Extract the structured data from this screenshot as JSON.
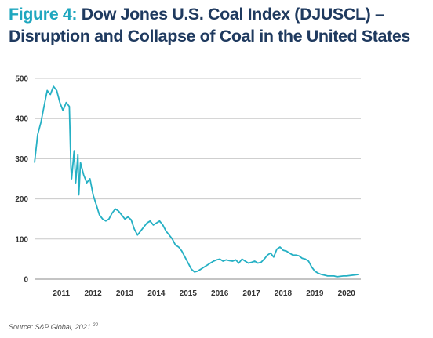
{
  "figure": {
    "label": "Figure 4:",
    "title": "Dow Jones U.S. Coal Index (DJUSCL) – Disruption and Collapse of Coal in the United States",
    "source": "Source: S&P Global, 2021.",
    "source_note": "20"
  },
  "chart_data": {
    "type": "line",
    "title": "Dow Jones U.S. Coal Index (DJUSCL) – Disruption and Collapse of Coal in the United States",
    "xlabel": "",
    "ylabel": "",
    "xlim": [
      2010.45,
      2020.75
    ],
    "ylim": [
      0,
      500
    ],
    "grid": "horizontal",
    "x_ticks": [
      {
        "value": 2011,
        "label": "2011"
      },
      {
        "value": 2012,
        "label": "2012"
      },
      {
        "value": 2013,
        "label": "2013"
      },
      {
        "value": 2014,
        "label": "2014"
      },
      {
        "value": 2015,
        "label": "2015"
      },
      {
        "value": 2016,
        "label": "2016"
      },
      {
        "value": 2017,
        "label": "2017"
      },
      {
        "value": 2018,
        "label": "2018"
      },
      {
        "value": 2019,
        "label": "2019"
      },
      {
        "value": 2020,
        "label": "2020"
      }
    ],
    "y_ticks": [
      0,
      100,
      200,
      300,
      400,
      500
    ],
    "color": "#25b0c4",
    "series": [
      {
        "x": [
          2010.45,
          2010.55,
          2010.65,
          2010.75,
          2010.85,
          2010.95,
          2011.05,
          2011.15,
          2011.25,
          2011.35,
          2011.45,
          2011.55,
          2011.6,
          2011.62,
          2011.7,
          2011.75,
          2011.82,
          2011.85,
          2011.9,
          2012.0,
          2012.1,
          2012.2,
          2012.3,
          2012.4,
          2012.5,
          2012.6,
          2012.7,
          2012.8,
          2012.9,
          2013.0,
          2013.1,
          2013.2,
          2013.3,
          2013.4,
          2013.5,
          2013.6,
          2013.7,
          2013.8,
          2013.9,
          2014.0,
          2014.1,
          2014.2,
          2014.3,
          2014.4,
          2014.5,
          2014.6,
          2014.7,
          2014.8,
          2014.9,
          2015.0,
          2015.1,
          2015.2,
          2015.3,
          2015.4,
          2015.5,
          2015.6,
          2015.7,
          2015.8,
          2015.9,
          2016.0,
          2016.1,
          2016.2,
          2016.3,
          2016.4,
          2016.5,
          2016.6,
          2016.7,
          2016.8,
          2016.9,
          2017.0,
          2017.1,
          2017.2,
          2017.3,
          2017.4,
          2017.5,
          2017.6,
          2017.7,
          2017.8,
          2017.9,
          2018.0,
          2018.1,
          2018.2,
          2018.3,
          2018.4,
          2018.5,
          2018.6,
          2018.7,
          2018.8,
          2018.9,
          2019.0,
          2019.1,
          2019.2,
          2019.3,
          2019.4,
          2019.5,
          2019.6,
          2019.7,
          2019.8,
          2019.9,
          2020.0,
          2020.1,
          2020.2,
          2020.3,
          2020.4,
          2020.5,
          2020.6,
          2020.7
        ],
        "y": [
          290,
          360,
          390,
          430,
          470,
          460,
          480,
          470,
          440,
          420,
          440,
          430,
          280,
          250,
          320,
          240,
          310,
          210,
          290,
          260,
          240,
          250,
          210,
          185,
          160,
          150,
          145,
          150,
          165,
          175,
          170,
          160,
          150,
          155,
          148,
          125,
          110,
          120,
          130,
          140,
          145,
          135,
          140,
          145,
          135,
          120,
          110,
          100,
          85,
          80,
          70,
          55,
          40,
          25,
          18,
          20,
          25,
          30,
          35,
          40,
          45,
          48,
          50,
          45,
          48,
          46,
          45,
          48,
          40,
          50,
          45,
          40,
          42,
          45,
          40,
          42,
          50,
          60,
          65,
          55,
          75,
          80,
          72,
          70,
          65,
          60,
          60,
          58,
          52,
          50,
          45,
          30,
          20,
          15,
          12,
          10,
          8,
          8,
          8,
          6,
          7,
          8,
          8,
          9,
          10,
          11,
          12
        ]
      }
    ]
  }
}
